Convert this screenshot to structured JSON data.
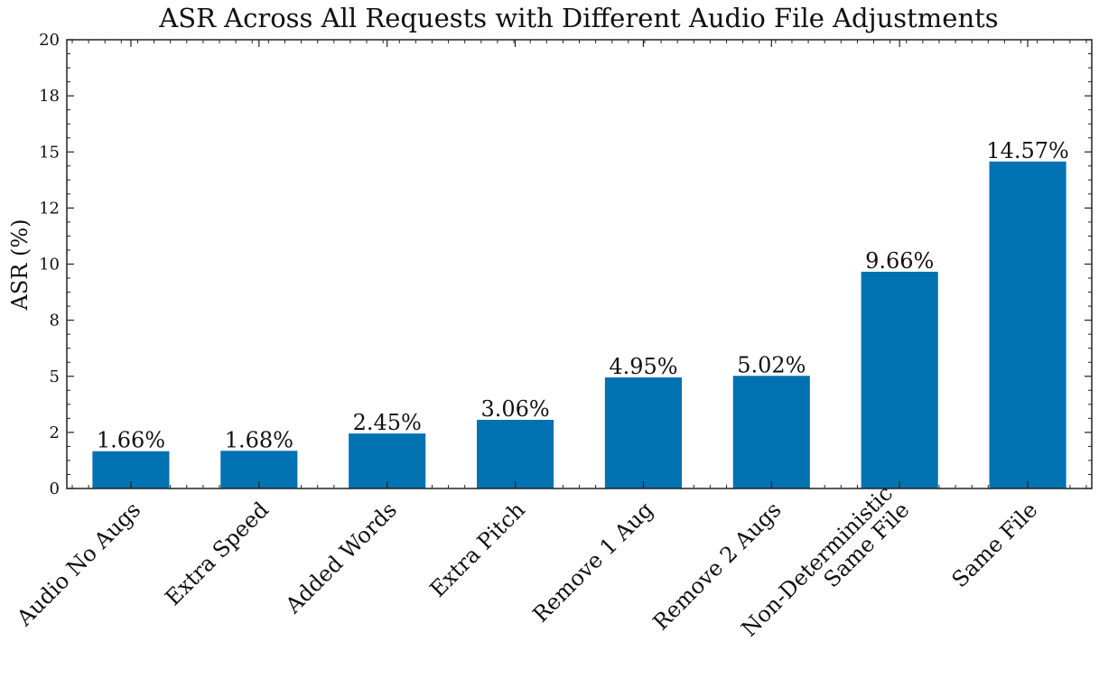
{
  "chart_data": {
    "type": "bar",
    "title": "ASR Across All Requests with Different Audio File Adjustments",
    "xlabel": "",
    "ylabel": "ASR (%)",
    "categories": [
      [
        "Audio No Augs"
      ],
      [
        "Extra Speed"
      ],
      [
        "Added Words"
      ],
      [
        "Extra Pitch"
      ],
      [
        "Remove 1 Aug"
      ],
      [
        "Remove 2 Augs"
      ],
      [
        "Non-Deterministic",
        "Same File"
      ],
      [
        "Same File"
      ]
    ],
    "values": [
      1.66,
      1.68,
      2.45,
      3.06,
      4.95,
      5.02,
      9.66,
      14.57
    ],
    "data_labels": [
      "1.66%",
      "1.68%",
      "2.45%",
      "3.06%",
      "4.95%",
      "5.02%",
      "9.66%",
      "14.57%"
    ],
    "y_ticks": [
      "0",
      "2",
      "5",
      "8",
      "10",
      "12",
      "15",
      "18",
      "20"
    ],
    "ylim": [
      0,
      20
    ],
    "bar_color": "#0072b2",
    "grid": false,
    "legend": "none"
  }
}
